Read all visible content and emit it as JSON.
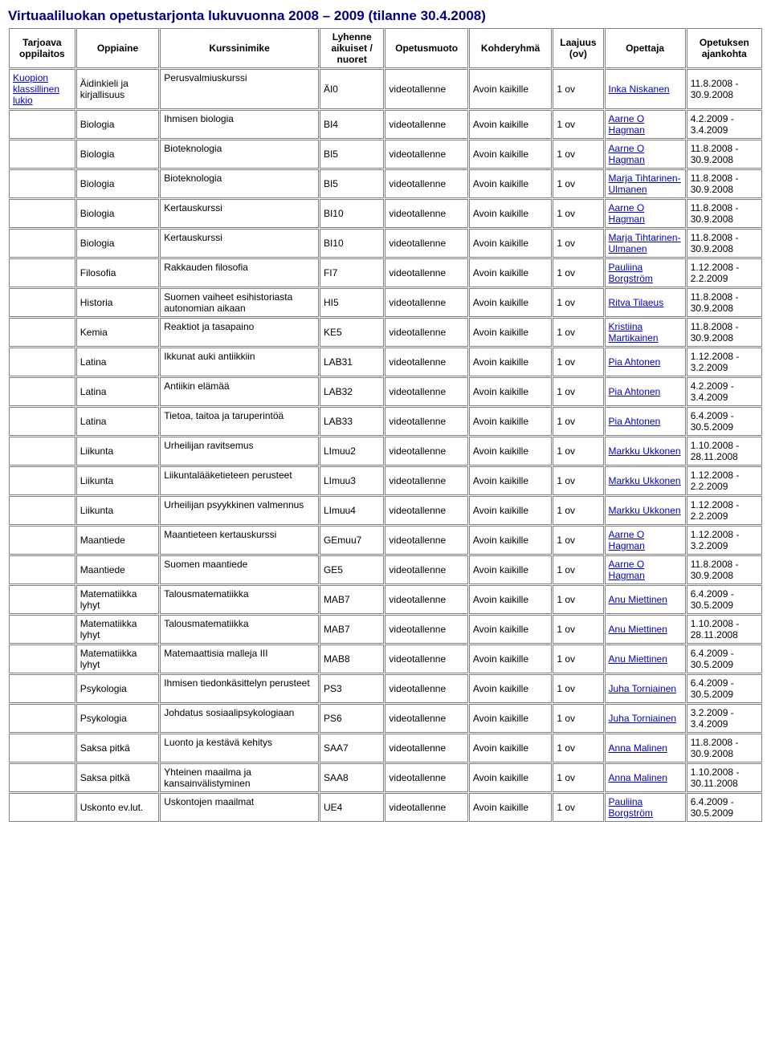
{
  "title": "Virtuaaliluokan opetustarjonta lukuvuonna 2008 – 2009 (tilanne 30.4.2008)",
  "headers": [
    "Tarjoava oppilaitos",
    "Oppiaine",
    "Kurssinimike",
    "Lyhenne aikuiset / nuoret",
    "Opetusmuoto",
    "Kohderyhmä",
    "Laajuus (ov)",
    "Opettaja",
    "Opetuksen ajankohta"
  ],
  "institution": {
    "text": "Kuopion klassillinen lukio",
    "link": true
  },
  "rows": [
    {
      "oppiaine": "Äidinkieli ja kirjallisuus",
      "kurssi": "Perusvalmiuskurssi",
      "lyhenne": "ÄI0",
      "muoto": "videotallenne",
      "kohde": "Avoin kaikille",
      "ov": "1 ov",
      "opettaja": "Inka Niskanen",
      "opLink": true,
      "aika": "11.8.2008 - 30.9.2008"
    },
    {
      "oppiaine": "Biologia",
      "kurssi": "Ihmisen biologia",
      "lyhenne": "BI4",
      "muoto": "videotallenne",
      "kohde": "Avoin kaikille",
      "ov": "1 ov",
      "opettaja": "Aarne O Hagman",
      "opLink": true,
      "aika": "4.2.2009 - 3.4.2009"
    },
    {
      "oppiaine": "Biologia",
      "kurssi": "Bioteknologia",
      "lyhenne": "BI5",
      "muoto": "videotallenne",
      "kohde": "Avoin kaikille",
      "ov": "1 ov",
      "opettaja": "Aarne O Hagman",
      "opLink": true,
      "aika": "11.8.2008 - 30.9.2008"
    },
    {
      "oppiaine": "Biologia",
      "kurssi": "Bioteknologia",
      "lyhenne": "BI5",
      "muoto": "videotallenne",
      "kohde": "Avoin kaikille",
      "ov": "1 ov",
      "opettaja": "Marja Tihtarinen-Ulmanen",
      "opLink": true,
      "aika": "11.8.2008 - 30.9.2008"
    },
    {
      "oppiaine": "Biologia",
      "kurssi": "Kertauskurssi",
      "lyhenne": "BI10",
      "muoto": "videotallenne",
      "kohde": "Avoin kaikille",
      "ov": "1 ov",
      "opettaja": "Aarne O Hagman",
      "opLink": true,
      "aika": "11.8.2008 - 30.9.2008"
    },
    {
      "oppiaine": "Biologia",
      "kurssi": "Kertauskurssi",
      "lyhenne": "BI10",
      "muoto": "videotallenne",
      "kohde": "Avoin kaikille",
      "ov": "1 ov",
      "opettaja": "Marja Tihtarinen-Ulmanen",
      "opLink": true,
      "aika": "11.8.2008 - 30.9.2008"
    },
    {
      "oppiaine": "Filosofia",
      "kurssi": "Rakkauden filosofia",
      "lyhenne": "FI7",
      "muoto": "videotallenne",
      "kohde": "Avoin kaikille",
      "ov": "1 ov",
      "opettaja": "Pauliina Borgström",
      "opLink": true,
      "aika": "1.12.2008 - 2.2.2009"
    },
    {
      "oppiaine": "Historia",
      "kurssi": "Suomen vaiheet esihistoriasta autonomian aikaan",
      "lyhenne": "HI5",
      "muoto": "videotallenne",
      "kohde": "Avoin kaikille",
      "ov": "1 ov",
      "opettaja": "Ritva Tilaeus",
      "opLink": true,
      "aika": "11.8.2008 - 30.9.2008"
    },
    {
      "oppiaine": "Kemia",
      "kurssi": "Reaktiot ja tasapaino",
      "lyhenne": "KE5",
      "muoto": "videotallenne",
      "kohde": "Avoin kaikille",
      "ov": "1 ov",
      "opettaja": "Kristiina Martikainen",
      "opLink": true,
      "aika": "11.8.2008 - 30.9.2008"
    },
    {
      "oppiaine": "Latina",
      "kurssi": "Ikkunat auki antiikkiin",
      "lyhenne": "LAB31",
      "muoto": "videotallenne",
      "kohde": "Avoin kaikille",
      "ov": "1 ov",
      "opettaja": "Pia Ahtonen",
      "opLink": true,
      "aika": "1.12.2008 - 3.2.2009"
    },
    {
      "oppiaine": "Latina",
      "kurssi": "Antiikin elämää",
      "lyhenne": "LAB32",
      "muoto": "videotallenne",
      "kohde": "Avoin kaikille",
      "ov": "1 ov",
      "opettaja": "Pia Ahtonen",
      "opLink": true,
      "aika": "4.2.2009 - 3.4.2009"
    },
    {
      "oppiaine": "Latina",
      "kurssi": "Tietoa, taitoa ja taruperintöä",
      "lyhenne": "LAB33",
      "muoto": "videotallenne",
      "kohde": "Avoin kaikille",
      "ov": "1 ov",
      "opettaja": "Pia Ahtonen",
      "opLink": true,
      "aika": "6.4.2009 - 30.5.2009"
    },
    {
      "oppiaine": "Liikunta",
      "kurssi": "Urheilijan ravitsemus",
      "lyhenne": "LImuu2",
      "muoto": "videotallenne",
      "kohde": "Avoin kaikille",
      "ov": "1 ov",
      "opettaja": "Markku Ukkonen",
      "opLink": true,
      "aika": "1.10.2008 - 28.11.2008"
    },
    {
      "oppiaine": "Liikunta",
      "kurssi": "Liikuntalääketieteen perusteet",
      "lyhenne": "LImuu3",
      "muoto": "videotallenne",
      "kohde": "Avoin kaikille",
      "ov": "1 ov",
      "opettaja": "Markku Ukkonen",
      "opLink": true,
      "aika": "1.12.2008 - 2.2.2009"
    },
    {
      "oppiaine": "Liikunta",
      "kurssi": "Urheilijan psyykkinen valmennus",
      "lyhenne": "LImuu4",
      "muoto": "videotallenne",
      "kohde": "Avoin kaikille",
      "ov": "1 ov",
      "opettaja": "Markku Ukkonen",
      "opLink": true,
      "aika": "1.12.2008 - 2.2.2009"
    },
    {
      "oppiaine": "Maantiede",
      "kurssi": "Maantieteen kertauskurssi",
      "lyhenne": "GEmuu7",
      "muoto": "videotallenne",
      "kohde": "Avoin kaikille",
      "ov": "1 ov",
      "opettaja": "Aarne O Hagman",
      "opLink": true,
      "aika": "1.12.2008 - 3.2.2009"
    },
    {
      "oppiaine": "Maantiede",
      "kurssi": "Suomen maantiede",
      "lyhenne": "GE5",
      "muoto": "videotallenne",
      "kohde": "Avoin kaikille",
      "ov": "1 ov",
      "opettaja": "Aarne O Hagman",
      "opLink": true,
      "aika": "11.8.2008 - 30.9.2008"
    },
    {
      "oppiaine": "Matematiikka lyhyt",
      "kurssi": "Talousmatematiikka",
      "lyhenne": "MAB7",
      "muoto": "videotallenne",
      "kohde": "Avoin kaikille",
      "ov": "1 ov",
      "opettaja": "Anu Miettinen",
      "opLink": true,
      "aika": "6.4.2009 - 30.5.2009"
    },
    {
      "oppiaine": "Matematiikka lyhyt",
      "kurssi": "Talousmatematiikka",
      "lyhenne": "MAB7",
      "muoto": "videotallenne",
      "kohde": "Avoin kaikille",
      "ov": "1 ov",
      "opettaja": "Anu Miettinen",
      "opLink": true,
      "aika": "1.10.2008 - 28.11.2008"
    },
    {
      "oppiaine": "Matematiikka lyhyt",
      "kurssi": "Matemaattisia malleja III",
      "lyhenne": "MAB8",
      "muoto": "videotallenne",
      "kohde": "Avoin kaikille",
      "ov": "1 ov",
      "opettaja": "Anu Miettinen",
      "opLink": true,
      "aika": "6.4.2009 - 30.5.2009"
    },
    {
      "oppiaine": "Psykologia",
      "kurssi": "Ihmisen tiedonkäsittelyn perusteet",
      "lyhenne": "PS3",
      "muoto": "videotallenne",
      "kohde": "Avoin kaikille",
      "ov": "1 ov",
      "opettaja": "Juha Torniainen",
      "opLink": true,
      "aika": "6.4.2009 - 30.5.2009"
    },
    {
      "oppiaine": "Psykologia",
      "kurssi": "Johdatus sosiaalipsykologiaan",
      "lyhenne": "PS6",
      "muoto": "videotallenne",
      "kohde": "Avoin kaikille",
      "ov": "1 ov",
      "opettaja": "Juha Torniainen",
      "opLink": true,
      "aika": "3.2.2009 - 3.4.2009"
    },
    {
      "oppiaine": "Saksa pitkä",
      "kurssi": "Luonto ja kestävä kehitys",
      "lyhenne": "SAA7",
      "muoto": "videotallenne",
      "kohde": "Avoin kaikille",
      "ov": "1 ov",
      "opettaja": "Anna Malinen",
      "opLink": true,
      "aika": "11.8.2008 - 30.9.2008"
    },
    {
      "oppiaine": "Saksa pitkä",
      "kurssi": "Yhteinen maailma ja kansainvälistyminen",
      "lyhenne": "SAA8",
      "muoto": "videotallenne",
      "kohde": "Avoin kaikille",
      "ov": "1 ov",
      "opettaja": "Anna Malinen",
      "opLink": true,
      "aika": "1.10.2008 - 30.11.2008"
    },
    {
      "oppiaine": "Uskonto ev.lut.",
      "kurssi": "Uskontojen maailmat",
      "lyhenne": "UE4",
      "muoto": "videotallenne",
      "kohde": "Avoin kaikille",
      "ov": "1 ov",
      "opettaja": "Pauliina Borgström",
      "opLink": true,
      "aika": "6.4.2009 - 30.5.2009"
    }
  ]
}
